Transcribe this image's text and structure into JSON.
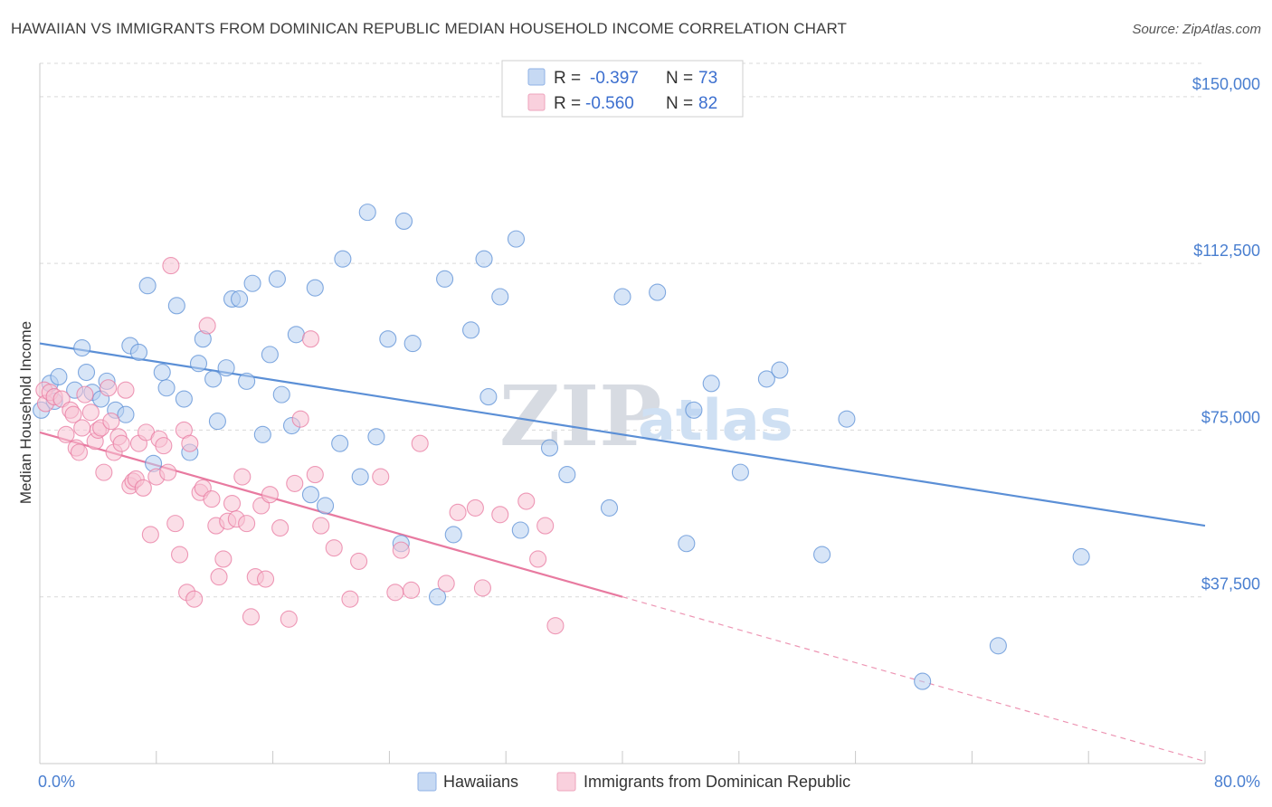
{
  "header": {
    "title": "HAWAIIAN VS IMMIGRANTS FROM DOMINICAN REPUBLIC MEDIAN HOUSEHOLD INCOME CORRELATION CHART",
    "source": "Source: ZipAtlas.com"
  },
  "watermark": {
    "zip": "ZIP",
    "atlas": "atlas"
  },
  "stats": [
    {
      "r_label": "R =",
      "r_value": "-0.397",
      "n_label": "N =",
      "n_value": "73",
      "color": "#a9c6ee"
    },
    {
      "r_label": "R =",
      "r_value": "-0.560",
      "n_label": "N =",
      "n_value": "82",
      "color": "#f5b5c8"
    }
  ],
  "chart_data": {
    "type": "scatter",
    "title": "HAWAIIAN VS IMMIGRANTS FROM DOMINICAN REPUBLIC MEDIAN HOUSEHOLD INCOME CORRELATION CHART",
    "xlabel": "",
    "ylabel": "Median Household Income",
    "xlim": [
      0,
      80
    ],
    "ylim": [
      0,
      157500
    ],
    "x_tick_labels": [
      "0.0%",
      "80.0%"
    ],
    "y_ticks": [
      37500,
      75000,
      112500,
      150000
    ],
    "y_tick_labels": [
      "$37,500",
      "$75,000",
      "$112,500",
      "$150,000"
    ],
    "grid": true,
    "legend_position": "bottom-center",
    "series": [
      {
        "name": "Hawaiians",
        "color": "#5b8fd6",
        "fill": "#b7cff0",
        "trend": {
          "x": [
            0,
            80
          ],
          "y": [
            94500,
            53500
          ],
          "dashed_extension": false
        },
        "points": [
          [
            0.1,
            79500
          ],
          [
            0.7,
            85500
          ],
          [
            1.0,
            81500
          ],
          [
            1.3,
            87000
          ],
          [
            2.4,
            84000
          ],
          [
            2.9,
            93500
          ],
          [
            3.2,
            88000
          ],
          [
            3.6,
            83500
          ],
          [
            4.2,
            82000
          ],
          [
            4.6,
            86000
          ],
          [
            5.2,
            79500
          ],
          [
            5.9,
            78500
          ],
          [
            6.2,
            94000
          ],
          [
            6.8,
            92500
          ],
          [
            7.4,
            107500
          ],
          [
            7.8,
            67500
          ],
          [
            8.4,
            88000
          ],
          [
            8.7,
            84500
          ],
          [
            9.4,
            103000
          ],
          [
            9.9,
            82000
          ],
          [
            10.3,
            70000
          ],
          [
            10.9,
            90000
          ],
          [
            11.2,
            95500
          ],
          [
            11.9,
            86500
          ],
          [
            12.2,
            77000
          ],
          [
            12.8,
            89000
          ],
          [
            13.2,
            104500
          ],
          [
            13.7,
            104500
          ],
          [
            14.2,
            86000
          ],
          [
            14.6,
            108000
          ],
          [
            15.3,
            74000
          ],
          [
            15.8,
            92000
          ],
          [
            16.3,
            109000
          ],
          [
            16.6,
            83000
          ],
          [
            17.3,
            76000
          ],
          [
            17.6,
            96500
          ],
          [
            18.6,
            60500
          ],
          [
            18.9,
            107000
          ],
          [
            19.6,
            58000
          ],
          [
            20.6,
            72000
          ],
          [
            20.8,
            113500
          ],
          [
            22.0,
            64500
          ],
          [
            22.5,
            124000
          ],
          [
            23.1,
            73500
          ],
          [
            23.9,
            95500
          ],
          [
            24.8,
            49500
          ],
          [
            25.0,
            122000
          ],
          [
            25.6,
            94500
          ],
          [
            27.3,
            37500
          ],
          [
            27.8,
            109000
          ],
          [
            28.4,
            51500
          ],
          [
            29.6,
            97500
          ],
          [
            30.5,
            113500
          ],
          [
            30.8,
            82500
          ],
          [
            31.6,
            105000
          ],
          [
            32.7,
            118000
          ],
          [
            33.0,
            52500
          ],
          [
            35.0,
            71000
          ],
          [
            36.2,
            65000
          ],
          [
            39.1,
            57500
          ],
          [
            40.0,
            105000
          ],
          [
            42.4,
            106000
          ],
          [
            44.4,
            49500
          ],
          [
            44.9,
            79500
          ],
          [
            46.1,
            85500
          ],
          [
            48.1,
            65500
          ],
          [
            49.9,
            86500
          ],
          [
            50.8,
            88500
          ],
          [
            53.7,
            47000
          ],
          [
            55.4,
            77500
          ],
          [
            60.6,
            18500
          ],
          [
            65.8,
            26500
          ],
          [
            71.5,
            46500
          ]
        ]
      },
      {
        "name": "Immigrants from Dominican Republic",
        "color": "#e87aa0",
        "fill": "#f7c3d3",
        "trend": {
          "x": [
            0,
            40
          ],
          "y": [
            74500,
            37500
          ],
          "extension_x": [
            40,
            80
          ],
          "extension_y": [
            37500,
            500
          ],
          "dashed_extension": true
        },
        "points": [
          [
            0.3,
            84000
          ],
          [
            0.4,
            81000
          ],
          [
            0.7,
            83500
          ],
          [
            1.0,
            82500
          ],
          [
            1.5,
            82000
          ],
          [
            1.8,
            74000
          ],
          [
            2.1,
            79500
          ],
          [
            2.3,
            78500
          ],
          [
            2.5,
            71000
          ],
          [
            2.7,
            70000
          ],
          [
            2.9,
            75500
          ],
          [
            3.1,
            83000
          ],
          [
            3.5,
            79000
          ],
          [
            3.8,
            72500
          ],
          [
            4.0,
            75000
          ],
          [
            4.2,
            75500
          ],
          [
            4.4,
            65500
          ],
          [
            4.7,
            84500
          ],
          [
            4.9,
            77000
          ],
          [
            5.1,
            70000
          ],
          [
            5.4,
            73500
          ],
          [
            5.6,
            72000
          ],
          [
            5.9,
            84000
          ],
          [
            6.2,
            62500
          ],
          [
            6.4,
            63500
          ],
          [
            6.6,
            64000
          ],
          [
            6.8,
            72000
          ],
          [
            7.1,
            62000
          ],
          [
            7.3,
            74500
          ],
          [
            7.6,
            51500
          ],
          [
            8.0,
            64500
          ],
          [
            8.2,
            73000
          ],
          [
            8.5,
            71500
          ],
          [
            8.8,
            65500
          ],
          [
            9.0,
            112000
          ],
          [
            9.3,
            54000
          ],
          [
            9.6,
            47000
          ],
          [
            9.9,
            75000
          ],
          [
            10.1,
            38500
          ],
          [
            10.3,
            72000
          ],
          [
            10.6,
            37000
          ],
          [
            11.0,
            61000
          ],
          [
            11.2,
            62000
          ],
          [
            11.5,
            98500
          ],
          [
            11.8,
            59500
          ],
          [
            12.1,
            53500
          ],
          [
            12.3,
            42000
          ],
          [
            12.6,
            46000
          ],
          [
            12.9,
            54500
          ],
          [
            13.2,
            58500
          ],
          [
            13.5,
            55000
          ],
          [
            13.9,
            64500
          ],
          [
            14.2,
            54000
          ],
          [
            14.5,
            33000
          ],
          [
            14.8,
            42000
          ],
          [
            15.2,
            58000
          ],
          [
            15.5,
            41500
          ],
          [
            15.8,
            60500
          ],
          [
            16.5,
            53000
          ],
          [
            17.1,
            32500
          ],
          [
            17.5,
            63000
          ],
          [
            17.9,
            77500
          ],
          [
            18.6,
            95500
          ],
          [
            18.9,
            65000
          ],
          [
            19.3,
            53500
          ],
          [
            20.2,
            48500
          ],
          [
            21.3,
            37000
          ],
          [
            21.9,
            45500
          ],
          [
            23.4,
            64500
          ],
          [
            24.4,
            38500
          ],
          [
            24.8,
            48000
          ],
          [
            25.5,
            39000
          ],
          [
            26.1,
            72000
          ],
          [
            27.9,
            40500
          ],
          [
            28.7,
            56500
          ],
          [
            29.9,
            57500
          ],
          [
            30.4,
            39500
          ],
          [
            31.6,
            56000
          ],
          [
            33.4,
            59000
          ],
          [
            34.2,
            46000
          ],
          [
            34.7,
            53500
          ],
          [
            35.4,
            31000
          ]
        ]
      }
    ]
  },
  "legend": {
    "items": [
      "Hawaiians",
      "Immigrants from Dominican Republic"
    ]
  }
}
